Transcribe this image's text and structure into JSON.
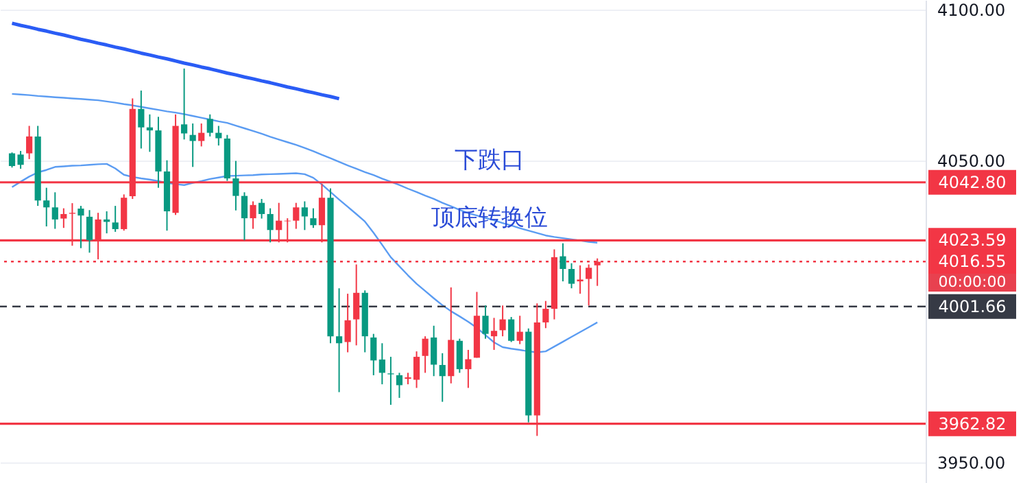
{
  "chart_data": {
    "type": "candlestick",
    "categories": [
      null,
      null,
      null,
      null,
      null,
      null,
      null,
      null,
      null,
      null,
      null,
      null,
      null,
      null,
      null,
      null,
      null,
      null,
      null,
      null,
      null,
      null,
      null,
      null,
      null,
      null,
      null,
      null,
      null,
      null,
      null,
      null,
      null,
      null,
      null,
      null,
      null,
      null,
      null,
      null,
      null,
      null,
      null,
      null,
      null,
      null,
      null,
      null,
      null,
      null,
      null,
      null,
      null,
      null,
      null,
      null,
      null,
      null,
      null,
      null,
      null,
      null,
      null,
      null,
      null,
      null,
      null,
      null,
      null
    ],
    "ohlc": [
      [
        4052.4,
        4052.7,
        4047.7,
        4048.2
      ],
      [
        4052.0,
        4053.2,
        4047.3,
        4048.6
      ],
      [
        4052.4,
        4061.5,
        4050.5,
        4058.0
      ],
      [
        4058.0,
        4061.5,
        4035.0,
        4036.8
      ],
      [
        4036.8,
        4041.0,
        4028.2,
        4034.5
      ],
      [
        4034.5,
        4039.5,
        4027.4,
        4030.5
      ],
      [
        4030.8,
        4034.2,
        4027.7,
        4032.3
      ],
      [
        4032.4,
        4035.9,
        4021.8,
        4032.7
      ],
      [
        4034.1,
        4035.0,
        4021.0,
        4031.8
      ],
      [
        4031.4,
        4033.6,
        4019.5,
        4023.6
      ],
      [
        4023.6,
        4032.7,
        4017.3,
        4030.5
      ],
      [
        4030.5,
        4033.2,
        4025.9,
        4029.7
      ],
      [
        4029.5,
        4035.0,
        4026.4,
        4027.3
      ],
      [
        4027.3,
        4038.8,
        4026.8,
        4037.7
      ],
      [
        4038.2,
        4070.6,
        4037.3,
        4067.1
      ],
      [
        4067.1,
        4073.2,
        4054.0,
        4061.0
      ],
      [
        4061.0,
        4065.3,
        4052.9,
        4060.0
      ],
      [
        4060.0,
        4064.5,
        4041.0,
        4046.4
      ],
      [
        4046.4,
        4050.1,
        4026.8,
        4033.2
      ],
      [
        4032.7,
        4065.3,
        4032.0,
        4061.5
      ],
      [
        4062.0,
        4080.5,
        4057.0,
        4059.0
      ],
      [
        4058.5,
        4062.3,
        4047.9,
        4056.5
      ],
      [
        4056.5,
        4062.3,
        4054.7,
        4059.2
      ],
      [
        4063.8,
        4065.3,
        4058.0,
        4059.2
      ],
      [
        4059.2,
        4061.5,
        4055.0,
        4057.4
      ],
      [
        4057.3,
        4058.5,
        4043.3,
        4044.1
      ],
      [
        4044.1,
        4049.9,
        4033.5,
        4038.3
      ],
      [
        4038.3,
        4039.5,
        4023.6,
        4030.9
      ],
      [
        4030.9,
        4036.5,
        4027.4,
        4035.3
      ],
      [
        4036.0,
        4037.3,
        4030.8,
        4032.3
      ],
      [
        4032.3,
        4034.2,
        4022.9,
        4027.0
      ],
      [
        4027.0,
        4036.0,
        4022.9,
        4030.1
      ],
      [
        4029.9,
        4030.9,
        4022.9,
        4030.1
      ],
      [
        4030.1,
        4036.0,
        4027.4,
        4034.5
      ],
      [
        4034.5,
        4036.5,
        4027.0,
        4031.5
      ],
      [
        4030.9,
        4034.2,
        4027.7,
        4028.6
      ],
      [
        4028.6,
        4042.3,
        4022.9,
        4037.7
      ],
      [
        4037.7,
        4040.8,
        3989.5,
        3991.8
      ],
      [
        3991.8,
        4007.7,
        3973.3,
        3989.5
      ],
      [
        3989.9,
        4005.9,
        3986.5,
        3997.1
      ],
      [
        3997.4,
        4015.6,
        3988.8,
        4006.2
      ],
      [
        4006.2,
        4007.0,
        3986.5,
        3991.8
      ],
      [
        3991.4,
        3992.6,
        3978.9,
        3983.8
      ],
      [
        3984.1,
        3989.5,
        3975.9,
        3979.7
      ],
      [
        3979.5,
        3985.0,
        3969.1,
        3979.2
      ],
      [
        3978.9,
        3979.7,
        3971.4,
        3975.6
      ],
      [
        3977.7,
        3979.7,
        3975.9,
        3978.2
      ],
      [
        3977.4,
        3986.8,
        3974.7,
        3985.0
      ],
      [
        3985.3,
        3991.8,
        3979.7,
        3991.0
      ],
      [
        3991.4,
        3995.3,
        3978.6,
        3982.4
      ],
      [
        3982.3,
        3986.2,
        3970.1,
        3978.6
      ],
      [
        3978.6,
        4008.0,
        3976.2,
        3990.6
      ],
      [
        3990.3,
        3991.0,
        3979.7,
        3980.9
      ],
      [
        3980.9,
        3987.3,
        3974.7,
        3984.2
      ],
      [
        3984.7,
        4006.5,
        3984.7,
        3998.6
      ],
      [
        3998.6,
        4002.0,
        3991.0,
        3992.6
      ],
      [
        3991.8,
        3997.9,
        3987.3,
        3993.6
      ],
      [
        3993.8,
        4002.0,
        3991.8,
        3997.4
      ],
      [
        3997.4,
        3998.2,
        3989.9,
        3990.3
      ],
      [
        3990.3,
        3998.6,
        3989.2,
        3993.3
      ],
      [
        3993.3,
        3994.4,
        3963.3,
        3965.6
      ],
      [
        3965.6,
        4002.7,
        3958.8,
        3996.4
      ],
      [
        3996.4,
        4003.5,
        3994.5,
        4000.9
      ],
      [
        4000.9,
        4020.6,
        3997.4,
        4018.0
      ],
      [
        4018.3,
        4022.6,
        4010.0,
        4014.1
      ],
      [
        4014.1,
        4016.0,
        4007.7,
        4009.2
      ],
      [
        4010.0,
        4015.3,
        4005.9,
        4010.6
      ],
      [
        4010.8,
        4015.6,
        4002.0,
        4014.5
      ],
      [
        4015.3,
        4017.6,
        4008.5,
        4016.5
      ]
    ],
    "colors": [
      "#089981",
      "#089981",
      "#f23645",
      "#089981",
      "#089981",
      "#089981",
      "#f23645",
      "#f23645",
      "#089981",
      "#089981",
      "#f23645",
      "#089981",
      "#089981",
      "#f23645",
      "#f23645",
      "#089981",
      "#089981",
      "#089981",
      "#089981",
      "#f23645",
      "#089981",
      "#089981",
      "#f23645",
      "#089981",
      "#089981",
      "#089981",
      "#089981",
      "#089981",
      "#f23645",
      "#089981",
      "#089981",
      "#f23645",
      "#f23645",
      "#f23645",
      "#089981",
      "#089981",
      "#f23645",
      "#089981",
      "#089981",
      "#f23645",
      "#f23645",
      "#089981",
      "#089981",
      "#089981",
      "#089981",
      "#089981",
      "#f23645",
      "#f23645",
      "#f23645",
      "#089981",
      "#089981",
      "#f23645",
      "#089981",
      "#f23645",
      "#f23645",
      "#089981",
      "#f23645",
      "#f23645",
      "#089981",
      "#f23645",
      "#089981",
      "#f23645",
      "#f23645",
      "#f23645",
      "#089981",
      "#089981",
      "#f23645",
      "#f23645",
      "#f23645"
    ],
    "series": [
      {
        "type": "line",
        "color": "#5b9cf2",
        "values": [
          4072.1,
          4071.9,
          4071.7,
          4071.4,
          4071.2,
          4071.0,
          4070.8,
          4070.6,
          4070.4,
          4070.2,
          4070.0,
          4069.6,
          4069.2,
          4068.7,
          4068.3,
          4067.8,
          4067.3,
          4066.8,
          4066.3,
          4065.9,
          4065.4,
          4064.8,
          4064.2,
          4063.6,
          4063.0,
          4062.5,
          4061.6,
          4060.7,
          4059.8,
          4058.9,
          4057.9,
          4057.0,
          4056.1,
          4055.2,
          4054.2,
          4053.1,
          4051.9,
          4050.8,
          4049.6,
          4048.4,
          4047.3,
          4046.2,
          4045.2,
          4044.0,
          4043.0,
          4041.9,
          4040.7,
          4039.6,
          4038.4,
          4037.3,
          4036.0,
          4034.9,
          4033.7,
          4032.6,
          4031.8,
          4031.0,
          4030.2,
          4029.3,
          4028.5,
          4027.6,
          4026.8,
          4026.0,
          4025.2,
          4024.7,
          4024.3,
          4023.9,
          4023.5,
          4023.1,
          4022.8
        ]
      },
      {
        "type": "line",
        "color": "#5b9cf2",
        "values": [
          4041.2,
          4043.0,
          4044.7,
          4046.1,
          4046.9,
          4047.9,
          4048.1,
          4048.3,
          4048.4,
          4048.6,
          4048.8,
          4048.9,
          4047.4,
          4045.3,
          4044.6,
          4044.1,
          4043.7,
          4043.2,
          4042.6,
          4042.2,
          4041.9,
          4042.6,
          4043.2,
          4043.9,
          4044.4,
          4044.9,
          4045.0,
          4045.1,
          4045.2,
          4045.4,
          4045.5,
          4045.6,
          4045.7,
          4045.8,
          4045.5,
          4044.3,
          4042.1,
          4039.6,
          4037.1,
          4034.7,
          4032.3,
          4029.8,
          4026.1,
          4022.1,
          4018.0,
          4015.0,
          4012.0,
          4009.2,
          4006.8,
          4004.4,
          4002.1,
          4000.1,
          3998.4,
          3996.6,
          3994.6,
          3992.2,
          3989.8,
          3988.2,
          3987.7,
          3987.3,
          3986.8,
          3986.5,
          3986.8,
          3988.4,
          3990.0,
          3991.6,
          3993.2,
          3994.8,
          3996.4
        ]
      },
      {
        "type": "line",
        "color": "#2a5cf5",
        "values": [
          4095.5,
          4094.8,
          4094.2,
          4093.5,
          4092.9,
          4092.2,
          4091.6,
          4090.9,
          4090.2,
          4089.6,
          4088.9,
          4088.3,
          4087.6,
          4087.0,
          4086.3,
          4085.6,
          4085.0,
          4084.3,
          4083.7,
          4083.0,
          4082.3,
          4081.7,
          4081.0,
          4080.4,
          4079.7,
          4079.0,
          4078.4,
          4077.7,
          4077.1,
          4076.4,
          4075.8,
          4075.1,
          4074.4,
          4073.8,
          4073.1,
          4072.5,
          4071.8,
          4071.2,
          4070.5,
          null,
          null,
          null,
          null,
          null,
          null,
          null,
          null,
          null,
          null,
          null,
          null,
          null,
          null,
          null,
          null,
          null,
          null,
          null,
          null,
          null,
          null,
          null,
          null,
          null,
          null,
          null,
          null,
          null,
          null
        ]
      }
    ],
    "ylim": [
      3943.2,
      4103.2
    ],
    "yticks": [
      {
        "value": 3950,
        "label": "3950.00"
      },
      {
        "value": 4050,
        "label": "4050.00"
      },
      {
        "value": 4100,
        "label": "4100.00"
      }
    ],
    "grid": "y",
    "tick_labels": "y",
    "ref_lines": [
      {
        "axis": "y",
        "value": 4042.8,
        "label": "4042.80",
        "color": "#f23645",
        "line_style": "solid"
      },
      {
        "axis": "y",
        "value": 4023.59,
        "label": "4023.59",
        "color": "#f23645",
        "line_style": "solid"
      },
      {
        "axis": "y",
        "value": 4016.55,
        "label": "4016.55",
        "color": "#f23645",
        "line_style": "dotted"
      },
      {
        "axis": "y",
        "value": 4001.66,
        "label": "4001.66",
        "color": "#363a45",
        "line_style": "dashed"
      },
      {
        "axis": "y",
        "value": 3962.82,
        "label": "3962.82",
        "color": "#f23645",
        "line_style": "solid"
      }
    ],
    "annotations": [
      {
        "text": "下跌口",
        "y": 4042.8
      },
      {
        "text": "顶底转换位",
        "y": 4023.59
      },
      "00:00:00"
    ]
  }
}
